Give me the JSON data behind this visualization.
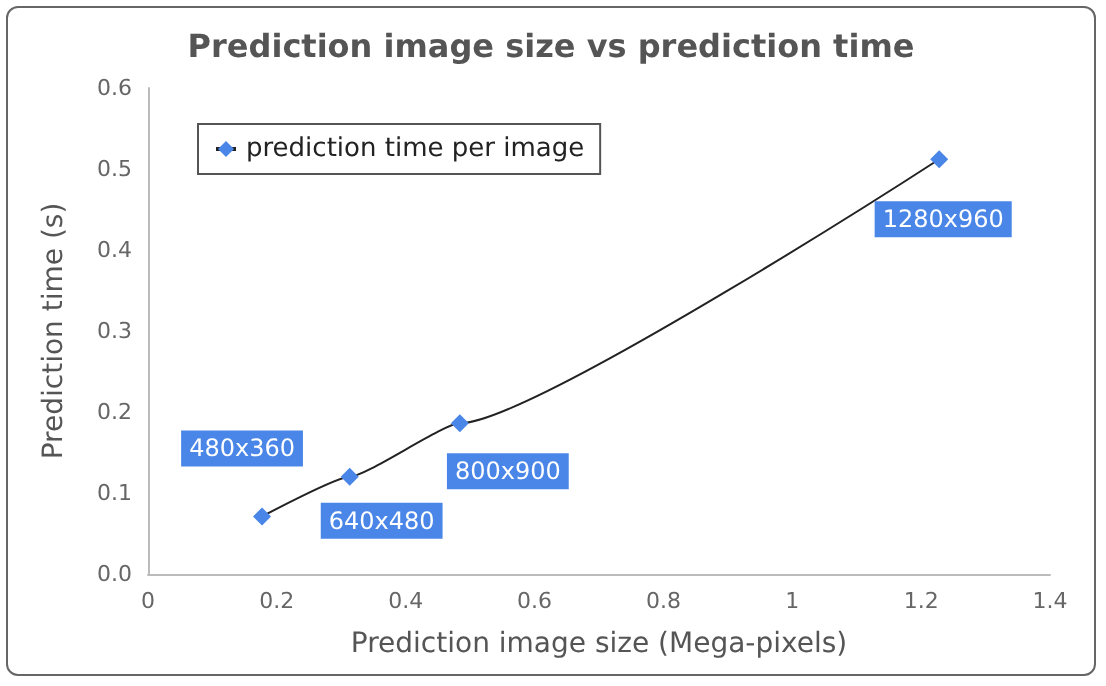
{
  "chart_data": {
    "type": "line",
    "title": "Prediction image size vs prediction time",
    "xlabel": "Prediction image size (Mega-pixels)",
    "ylabel": "Prediction time (s)",
    "x": [
      0.177,
      0.313,
      0.484,
      1.228
    ],
    "series": [
      {
        "name": "prediction time per image",
        "color": "#4a86e8",
        "values": [
          0.071,
          0.12,
          0.186,
          0.512
        ]
      }
    ],
    "xlim": [
      0,
      1.4
    ],
    "xticks": [
      0,
      0.2,
      0.4,
      0.6,
      0.8,
      1,
      1.2,
      1.4
    ],
    "ylim": [
      0,
      0.6
    ],
    "yticks": [
      {
        "value": 0,
        "label": "0.0"
      },
      0.1,
      0.2,
      0.3,
      0.4,
      0.5,
      0.6
    ],
    "marker": "diamond",
    "line_style": "solid",
    "grid": false,
    "legend": "top left",
    "annotations": [
      {
        "text": "480x360",
        "x": 0.177,
        "y": 0.071
      },
      {
        "text": "640x480",
        "x": 0.313,
        "y": 0.12
      },
      {
        "text": "800x900",
        "x": 0.484,
        "y": 0.186
      },
      {
        "text": "1280x960",
        "x": 1.228,
        "y": 0.512
      }
    ]
  }
}
